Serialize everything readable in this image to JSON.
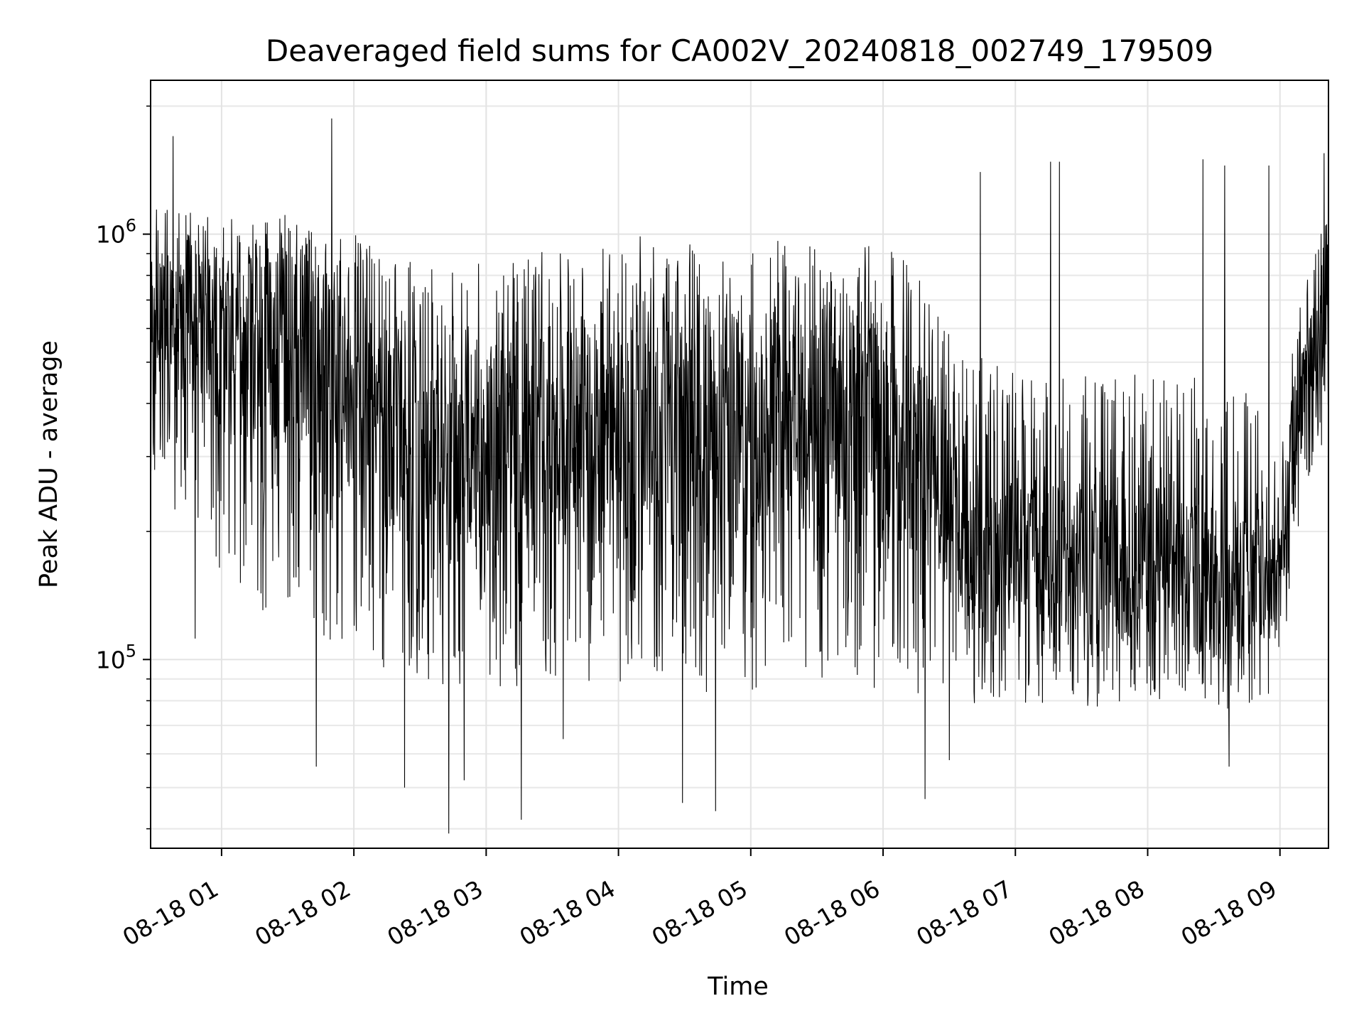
{
  "chart_data": {
    "type": "line",
    "title": "Deaveraged field sums for CA002V_20240818_002749_179509",
    "xlabel": "Time",
    "ylabel": "Peak ADU - average",
    "yscale": "log",
    "grid": true,
    "x_tick_labels": [
      "08-18 01",
      "08-18 02",
      "08-18 03",
      "08-18 04",
      "08-18 05",
      "08-18 06",
      "08-18 07",
      "08-18 08",
      "08-18 09"
    ],
    "y_tick_labels": [
      {
        "base": "10",
        "exp": "5",
        "value": 100000
      },
      {
        "base": "10",
        "exp": "6",
        "value": 1000000
      }
    ],
    "xlim": [
      "2024-08-18 00:27:49",
      "2024-08-18 09:22:00"
    ],
    "ylim": [
      36000,
      2300000
    ],
    "series": [
      {
        "color": "#000000",
        "profile": [
          {
            "time": "2024-08-18 00:30",
            "low": 250000,
            "high": 1150000,
            "mid": 620000
          },
          {
            "time": "2024-08-18 00:50",
            "low": 200000,
            "high": 1100000,
            "mid": 600000
          },
          {
            "time": "2024-08-18 01:15",
            "low": 150000,
            "high": 1050000,
            "mid": 520000
          },
          {
            "time": "2024-08-18 01:40",
            "low": 130000,
            "high": 1100000,
            "mid": 560000
          },
          {
            "time": "2024-08-18 02:10",
            "low": 110000,
            "high": 900000,
            "mid": 380000
          },
          {
            "time": "2024-08-18 02:40",
            "low": 95000,
            "high": 780000,
            "mid": 290000
          },
          {
            "time": "2024-08-18 03:10",
            "low": 95000,
            "high": 850000,
            "mid": 320000
          },
          {
            "time": "2024-08-18 03:40",
            "low": 95000,
            "high": 900000,
            "mid": 340000
          },
          {
            "time": "2024-08-18 04:10",
            "low": 95000,
            "high": 950000,
            "mid": 340000
          },
          {
            "time": "2024-08-18 04:40",
            "low": 95000,
            "high": 900000,
            "mid": 330000
          },
          {
            "time": "2024-08-18 05:10",
            "low": 95000,
            "high": 920000,
            "mid": 360000
          },
          {
            "time": "2024-08-18 05:40",
            "low": 100000,
            "high": 950000,
            "mid": 400000
          },
          {
            "time": "2024-08-18 06:10",
            "low": 95000,
            "high": 850000,
            "mid": 320000
          },
          {
            "time": "2024-08-18 06:40",
            "low": 85000,
            "high": 500000,
            "mid": 190000
          },
          {
            "time": "2024-08-18 07:10",
            "low": 85000,
            "high": 450000,
            "mid": 170000
          },
          {
            "time": "2024-08-18 07:40",
            "low": 80000,
            "high": 450000,
            "mid": 160000
          },
          {
            "time": "2024-08-18 08:10",
            "low": 85000,
            "high": 450000,
            "mid": 170000
          },
          {
            "time": "2024-08-18 08:40",
            "low": 80000,
            "high": 430000,
            "mid": 150000
          },
          {
            "time": "2024-08-18 09:00",
            "low": 90000,
            "high": 330000,
            "mid": 170000
          },
          {
            "time": "2024-08-18 09:10",
            "low": 250000,
            "high": 750000,
            "mid": 430000
          },
          {
            "time": "2024-08-18 09:22",
            "low": 350000,
            "high": 1100000,
            "mid": 650000
          }
        ],
        "notable_peaks": [
          {
            "time": "2024-08-18 00:38",
            "value": 1700000
          },
          {
            "time": "2024-08-18 01:50",
            "value": 1870000
          },
          {
            "time": "2024-08-18 06:44",
            "value": 1400000
          },
          {
            "time": "2024-08-18 07:16",
            "value": 1480000
          },
          {
            "time": "2024-08-18 07:20",
            "value": 1480000
          },
          {
            "time": "2024-08-18 08:25",
            "value": 1500000
          },
          {
            "time": "2024-08-18 08:35",
            "value": 1450000
          },
          {
            "time": "2024-08-18 08:55",
            "value": 1450000
          },
          {
            "time": "2024-08-18 09:20",
            "value": 1550000
          }
        ],
        "notable_troughs": [
          {
            "time": "2024-08-18 00:48",
            "value": 112000
          },
          {
            "time": "2024-08-18 01:43",
            "value": 56000
          },
          {
            "time": "2024-08-18 02:23",
            "value": 50000
          },
          {
            "time": "2024-08-18 02:43",
            "value": 39000
          },
          {
            "time": "2024-08-18 02:50",
            "value": 52000
          },
          {
            "time": "2024-08-18 03:16",
            "value": 42000
          },
          {
            "time": "2024-08-18 03:35",
            "value": 65000
          },
          {
            "time": "2024-08-18 04:29",
            "value": 46000
          },
          {
            "time": "2024-08-18 04:44",
            "value": 44000
          },
          {
            "time": "2024-08-18 06:19",
            "value": 47000
          },
          {
            "time": "2024-08-18 06:30",
            "value": 58000
          },
          {
            "time": "2024-08-18 08:37",
            "value": 56000
          }
        ]
      }
    ]
  }
}
